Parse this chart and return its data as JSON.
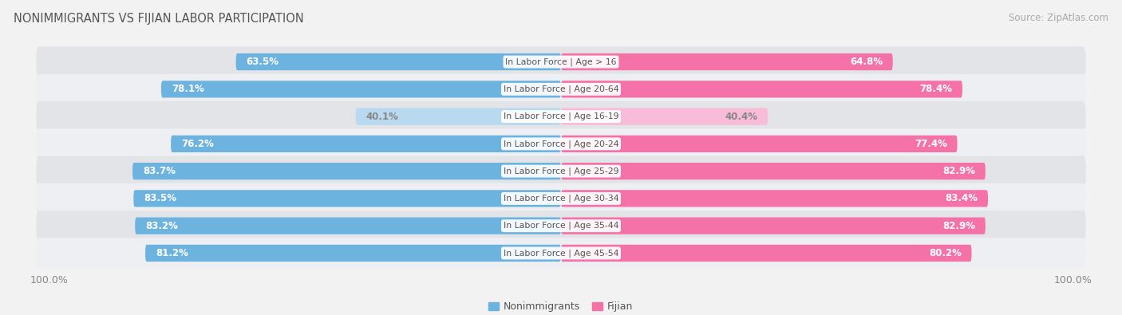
{
  "title": "NONIMMIGRANTS VS FIJIAN LABOR PARTICIPATION",
  "source": "Source: ZipAtlas.com",
  "categories": [
    "In Labor Force | Age > 16",
    "In Labor Force | Age 20-64",
    "In Labor Force | Age 16-19",
    "In Labor Force | Age 20-24",
    "In Labor Force | Age 25-29",
    "In Labor Force | Age 30-34",
    "In Labor Force | Age 35-44",
    "In Labor Force | Age 45-54"
  ],
  "nonimmigrant_values": [
    63.5,
    78.1,
    40.1,
    76.2,
    83.7,
    83.5,
    83.2,
    81.2
  ],
  "fijian_values": [
    64.8,
    78.4,
    40.4,
    77.4,
    82.9,
    83.4,
    82.9,
    80.2
  ],
  "nonimmigrant_color": "#6db3e0",
  "nonimmigrant_color_light": "#b8d9f0",
  "fijian_color": "#f472a8",
  "fijian_color_light": "#f8bcd8",
  "bar_height": 0.62,
  "max_value": 100.0,
  "bg_color": "#f2f2f2",
  "row_bg_dark": "#e2e4e8",
  "row_bg_light": "#eeeff2",
  "legend_nonimmigrant": "Nonimmigrants",
  "legend_fijian": "Fijian",
  "cat_label_color": "#555555",
  "value_text_dark": "#ffffff",
  "value_text_light": "#888888",
  "title_color": "#555555",
  "source_color": "#aaaaaa",
  "tick_color": "#888888"
}
